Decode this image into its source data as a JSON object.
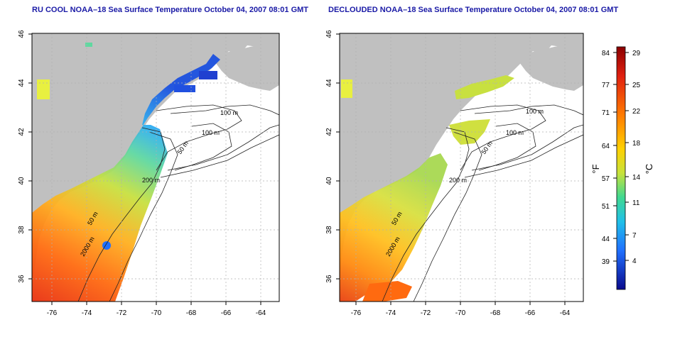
{
  "left_panel": {
    "title": "RU COOL NOAA–18 Sea Surface Temperature October 04, 2007 08:01 GMT"
  },
  "right_panel": {
    "title": "DECLOUDED NOAA–18 Sea Surface Temperature October 04, 2007 08:01 GMT"
  },
  "axes": {
    "lat_ticks": [
      "46",
      "44",
      "42",
      "40",
      "38",
      "36"
    ],
    "lon_ticks": [
      "-76",
      "-74",
      "-72",
      "-70",
      "-68",
      "-66",
      "-64"
    ]
  },
  "contour_labels": [
    "100 m",
    "100 m",
    "50 m",
    "200 m",
    "50 m",
    "2000 m"
  ],
  "colorbar": {
    "f_label": "°F",
    "c_label": "°C",
    "f_ticks": [
      "84",
      "77",
      "71",
      "64",
      "57",
      "51",
      "44",
      "39"
    ],
    "c_ticks": [
      "29",
      "25",
      "22",
      "18",
      "14",
      "11",
      "7",
      "4"
    ]
  },
  "colors": {
    "land": "#c0c0c0",
    "title": "#1a1aa6",
    "grid": "#b0b0b0"
  }
}
